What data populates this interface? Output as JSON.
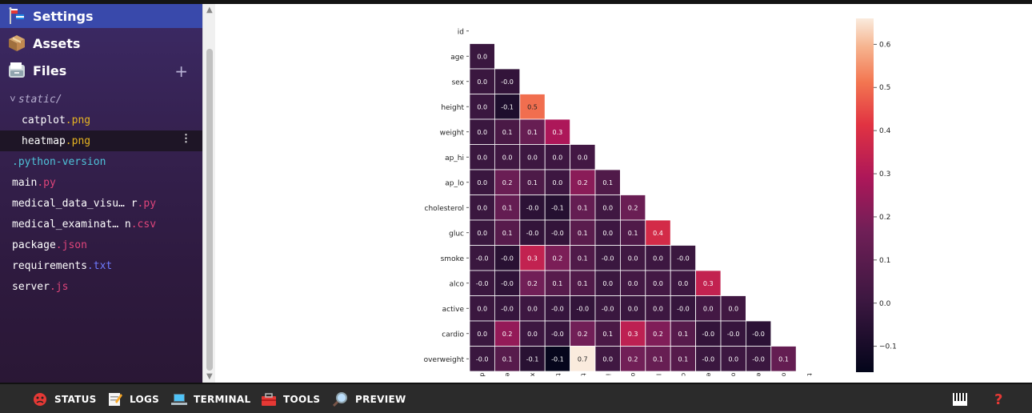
{
  "sidebar": {
    "nav": [
      {
        "label": "Settings",
        "icon": "settings-flag-icon"
      },
      {
        "label": "Assets",
        "icon": "package-icon"
      },
      {
        "label": "Files",
        "icon": "file-cabinet-icon"
      }
    ],
    "add_label": "+",
    "folder": {
      "chevron": "˅",
      "label": "static/"
    },
    "files": [
      {
        "base": "catplot",
        "ext": ".png",
        "ext_color": "#e6b422",
        "indent": true
      },
      {
        "base": "heatmap",
        "ext": ".png",
        "ext_color": "#e6b422",
        "indent": true,
        "selected": true
      },
      {
        "base": ".python-version",
        "ext": "",
        "ext_color": "#4fc3d9",
        "base_color": "#4fc3d9"
      },
      {
        "base": "main",
        "ext": ".py",
        "ext_color": "#e0457b"
      },
      {
        "base": "medical_data_visu… r",
        "ext": ".py",
        "ext_color": "#e0457b"
      },
      {
        "base": "medical_examinat… n",
        "ext": ".csv",
        "ext_color": "#e0457b"
      },
      {
        "base": "package",
        "ext": ".json",
        "ext_color": "#e0457b"
      },
      {
        "base": "requirements",
        "ext": ".txt",
        "ext_color": "#6f7bff"
      },
      {
        "base": "server",
        "ext": ".js",
        "ext_color": "#e0457b"
      }
    ],
    "kebab": "⋮"
  },
  "toolbar": {
    "items": [
      {
        "label": "STATUS",
        "icon": "status-face-icon"
      },
      {
        "label": "LOGS",
        "icon": "notepad-icon"
      },
      {
        "label": "TERMINAL",
        "icon": "laptop-icon"
      },
      {
        "label": "TOOLS",
        "icon": "toolbox-icon"
      },
      {
        "label": "PREVIEW",
        "icon": "magnifier-icon"
      }
    ],
    "right_icons": [
      "piano-icon",
      "help-question-icon"
    ],
    "help_glyph": "?"
  },
  "chart_data": {
    "type": "heatmap",
    "rows": [
      "id",
      "age",
      "sex",
      "height",
      "weight",
      "ap_hi",
      "ap_lo",
      "cholesterol",
      "gluc",
      "smoke",
      "alco",
      "active",
      "cardio",
      "overweight"
    ],
    "x_tick_glyphs": [
      "d",
      "e",
      "x",
      "t",
      "t",
      "i",
      "o",
      "l",
      "c",
      "e",
      "o",
      "e",
      "o",
      "t"
    ],
    "lower_triangle_values": [
      [],
      [
        "0.0"
      ],
      [
        "0.0",
        "-0.0"
      ],
      [
        "0.0",
        "-0.1",
        "0.5"
      ],
      [
        "0.0",
        "0.1",
        "0.1",
        "0.3"
      ],
      [
        "0.0",
        "0.0",
        "0.0",
        "0.0",
        "0.0"
      ],
      [
        "0.0",
        "0.2",
        "0.1",
        "0.0",
        "0.2",
        "0.1"
      ],
      [
        "0.0",
        "0.1",
        "-0.0",
        "-0.1",
        "0.1",
        "0.0",
        "0.2"
      ],
      [
        "0.0",
        "0.1",
        "-0.0",
        "-0.0",
        "0.1",
        "0.0",
        "0.1",
        "0.4"
      ],
      [
        "-0.0",
        "-0.0",
        "0.3",
        "0.2",
        "0.1",
        "-0.0",
        "0.0",
        "0.0",
        "-0.0"
      ],
      [
        "-0.0",
        "-0.0",
        "0.2",
        "0.1",
        "0.1",
        "0.0",
        "0.0",
        "0.0",
        "0.0",
        "0.3"
      ],
      [
        "0.0",
        "-0.0",
        "0.0",
        "-0.0",
        "-0.0",
        "-0.0",
        "0.0",
        "0.0",
        "-0.0",
        "0.0",
        "0.0"
      ],
      [
        "0.0",
        "0.2",
        "0.0",
        "-0.0",
        "0.2",
        "0.1",
        "0.3",
        "0.2",
        "0.1",
        "-0.0",
        "-0.0",
        "-0.0"
      ],
      [
        "-0.0",
        "0.1",
        "-0.1",
        "-0.1",
        "0.7",
        "0.0",
        "0.2",
        "0.1",
        "0.1",
        "-0.0",
        "0.0",
        "-0.0",
        "0.1"
      ]
    ],
    "true_values": [
      [],
      [
        0.0
      ],
      [
        0.0,
        -0.02
      ],
      [
        0.0,
        -0.08,
        0.5
      ],
      [
        0.0,
        0.05,
        0.14,
        0.29
      ],
      [
        0.0,
        0.02,
        0.01,
        0.01,
        0.03
      ],
      [
        0.0,
        0.15,
        0.06,
        0.01,
        0.22,
        0.07
      ],
      [
        0.0,
        0.13,
        -0.04,
        -0.06,
        0.13,
        0.02,
        0.15
      ],
      [
        0.0,
        0.09,
        -0.02,
        -0.02,
        0.1,
        0.01,
        0.07,
        0.38
      ],
      [
        -0.0,
        -0.05,
        0.34,
        0.19,
        0.07,
        -0.0,
        0.02,
        0.01,
        -0.0
      ],
      [
        -0.0,
        -0.03,
        0.17,
        0.09,
        0.07,
        0.0,
        0.03,
        0.03,
        0.01,
        0.34
      ],
      [
        0.0,
        -0.01,
        0.01,
        -0.01,
        -0.02,
        -0.0,
        0.0,
        0.01,
        -0.01,
        0.03,
        0.02
      ],
      [
        0.0,
        0.24,
        0.01,
        -0.01,
        0.17,
        0.05,
        0.33,
        0.2,
        0.09,
        -0.02,
        -0.01,
        -0.04
      ],
      [
        -0.0,
        0.09,
        -0.05,
        -0.15,
        0.66,
        0.02,
        0.17,
        0.14,
        0.09,
        -0.0,
        0.01,
        -0.0,
        0.13
      ]
    ],
    "colorbar_ticks": [
      "0.6",
      "0.5",
      "0.4",
      "0.3",
      "0.2",
      "0.1",
      "0.0",
      "−0.1"
    ],
    "vmin": -0.16,
    "vmax": 0.66,
    "colormap": "rocket"
  }
}
